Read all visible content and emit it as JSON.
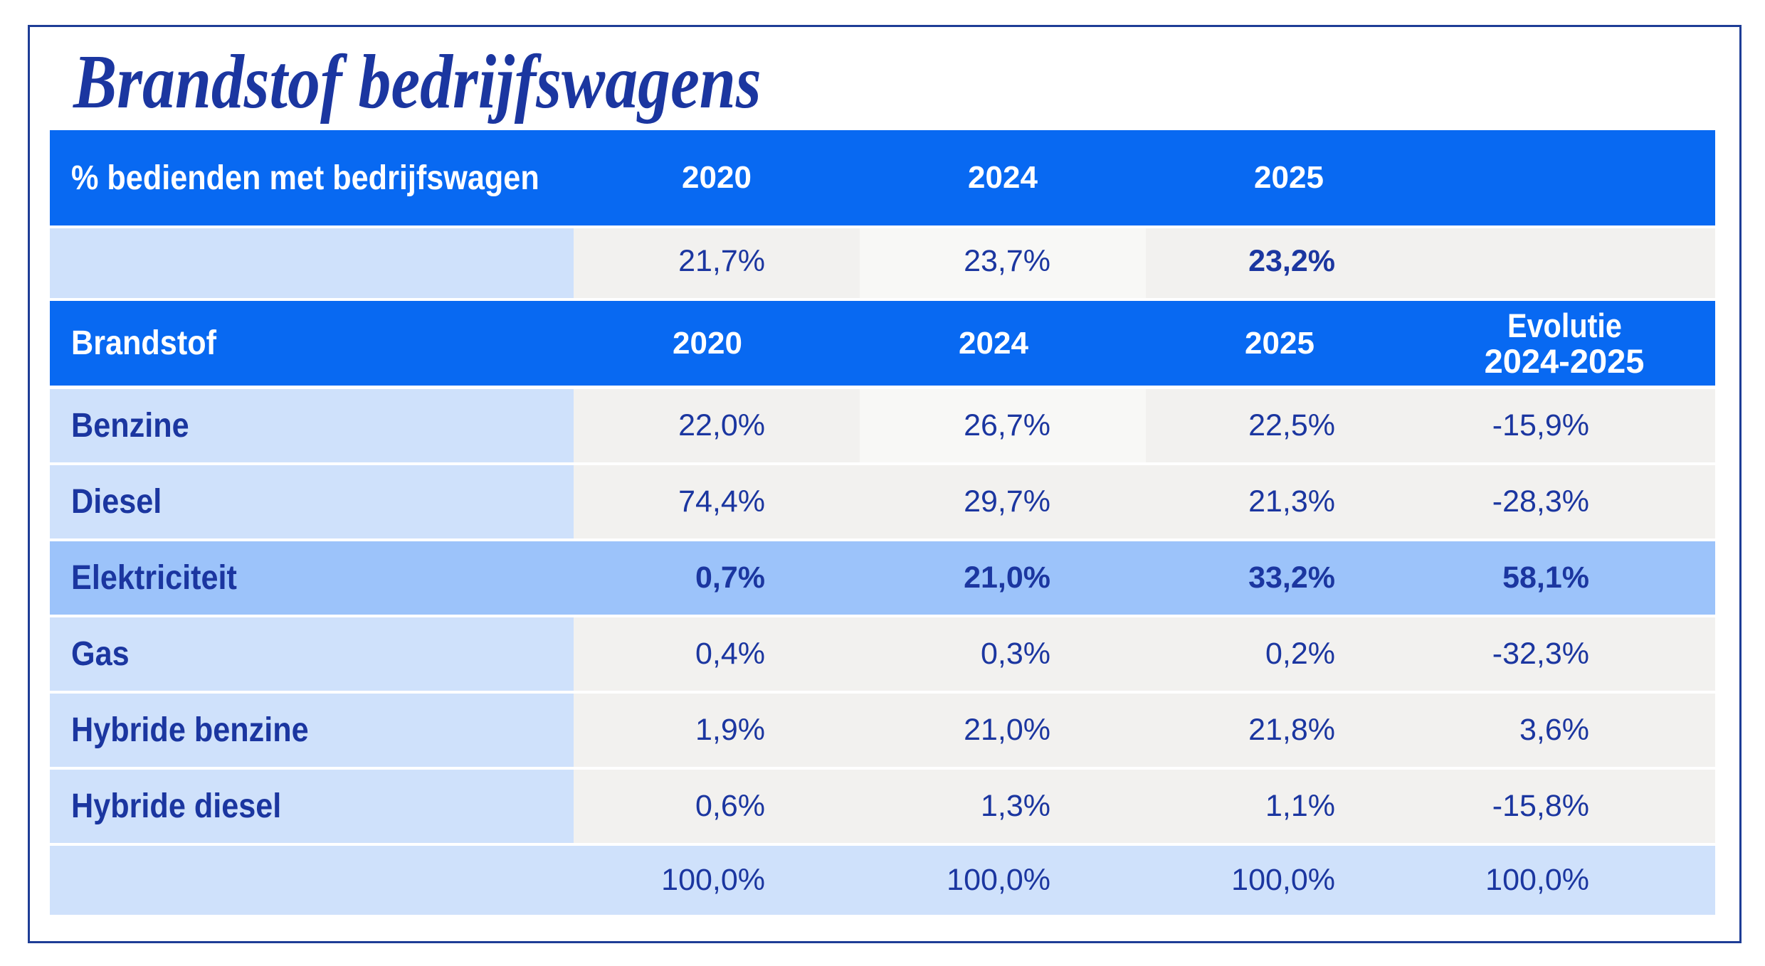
{
  "title": "Brandstof bedrijfswagens",
  "colors": {
    "header-blue": "#0869F2",
    "label-blue": "#CFE1FB",
    "cell-gray": "#F2F1EF",
    "cell-offwhite": "#F8F8F6",
    "highlight-blue": "#9CC3FA",
    "total-blue": "#CFE1FB",
    "navy": "#1B36A0",
    "border-navy": "#1E3D96",
    "page-white": "#FFFFFF"
  },
  "table1": {
    "header": {
      "label": "% bedienden met bedrijfswagen",
      "col1": "2020",
      "col2": "2024",
      "col3": "2025",
      "col4": ""
    },
    "row": {
      "label": "",
      "col1": "21,7%",
      "col2": "23,7%",
      "col3": "23,2%",
      "col4": ""
    }
  },
  "table2": {
    "header": {
      "label": "Brandstof",
      "col1": "2020",
      "col2": "2024",
      "col3": "2025",
      "col4_line1": "Evolutie",
      "col4_line2": "2024-2025"
    },
    "rows": [
      {
        "label": "Benzine",
        "col1": "22,0%",
        "col2": "26,7%",
        "col3": "22,5%",
        "col4": "-15,9%"
      },
      {
        "label": "Diesel",
        "col1": "74,4%",
        "col2": "29,7%",
        "col3": "21,3%",
        "col4": "-28,3%"
      },
      {
        "label": "Elektriciteit",
        "col1": "0,7%",
        "col2": "21,0%",
        "col3": "33,2%",
        "col4": "58,1%"
      },
      {
        "label": "Gas",
        "col1": "0,4%",
        "col2": "0,3%",
        "col3": "0,2%",
        "col4": "-32,3%"
      },
      {
        "label": "Hybride benzine",
        "col1": "1,9%",
        "col2": "21,0%",
        "col3": "21,8%",
        "col4": "3,6%"
      },
      {
        "label": "Hybride diesel",
        "col1": "0,6%",
        "col2": "1,3%",
        "col3": "1,1%",
        "col4": "-15,8%"
      }
    ],
    "total": {
      "label": "",
      "col1": "100,0%",
      "col2": "100,0%",
      "col3": "100,0%",
      "col4": "100,0%"
    }
  },
  "chart_data": [
    {
      "type": "table",
      "title": "Brandstof bedrijfswagens",
      "columns": [
        "% bedienden met bedrijfswagen",
        "2020",
        "2024",
        "2025"
      ],
      "rows": [
        {
          "label": "",
          "values": [
            21.7,
            23.7,
            23.2
          ]
        }
      ],
      "unit": "%",
      "notes": "value for 2025 shown in bold"
    },
    {
      "type": "table",
      "columns": [
        "Brandstof",
        "2020",
        "2024",
        "2025",
        "Evolutie 2024-2025"
      ],
      "rows": [
        {
          "label": "Benzine",
          "values": [
            22.0,
            26.7,
            22.5,
            -15.9
          ]
        },
        {
          "label": "Diesel",
          "values": [
            74.4,
            29.7,
            21.3,
            -28.3
          ]
        },
        {
          "label": "Elektriciteit",
          "values": [
            0.7,
            21.0,
            33.2,
            58.1
          ],
          "highlighted": true
        },
        {
          "label": "Gas",
          "values": [
            0.4,
            0.3,
            0.2,
            -32.3
          ]
        },
        {
          "label": "Hybride benzine",
          "values": [
            1.9,
            21.0,
            21.8,
            3.6
          ]
        },
        {
          "label": "Hybride diesel",
          "values": [
            0.6,
            1.3,
            1.1,
            -15.8
          ]
        },
        {
          "label": "",
          "values": [
            100.0,
            100.0,
            100.0,
            100.0
          ]
        }
      ],
      "unit": "%"
    }
  ]
}
